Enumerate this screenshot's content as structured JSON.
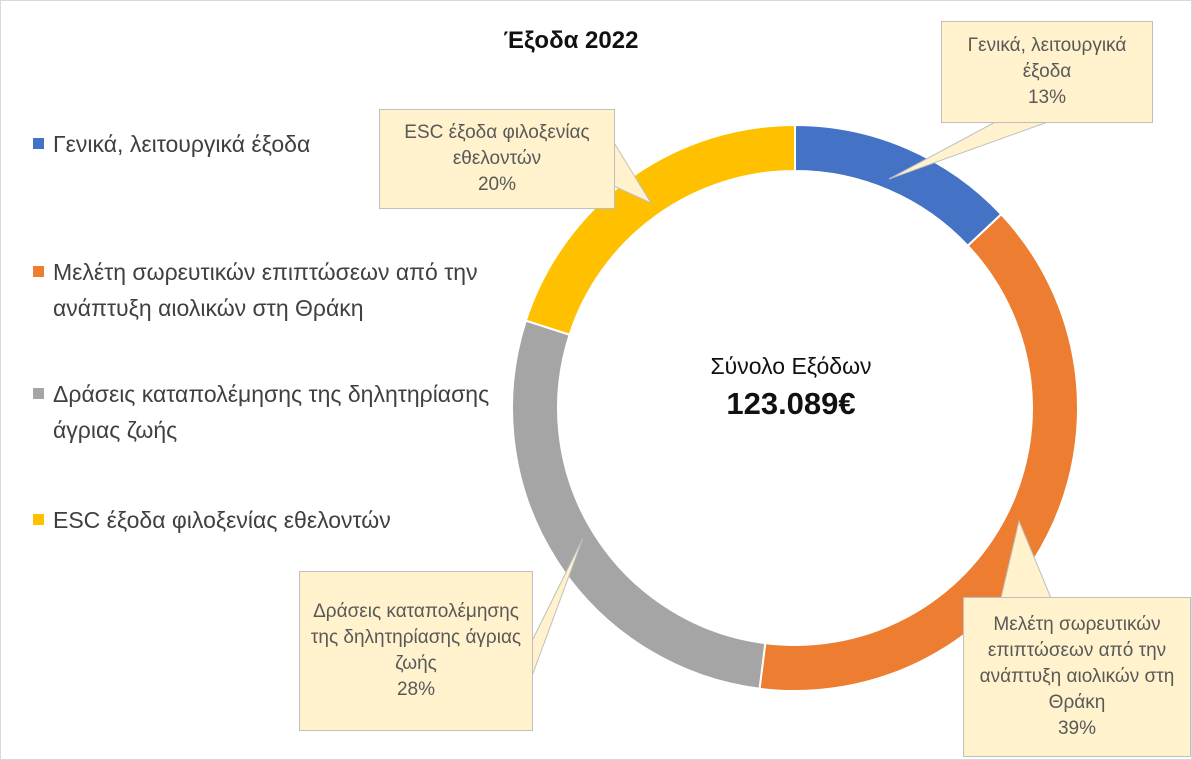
{
  "chart_data": {
    "type": "pie",
    "title": "Έξοδα 2022",
    "categories": [
      "Γενικά, λειτουργικά έξοδα",
      "Μελέτη σωρευτικών επιπτώσεων από την ανάπτυξη αιολικών στη Θράκη",
      "Δράσεις καταπολέμησης της δηλητηρίασης άγριας ζωής",
      "ESC έξοδα φιλοξενίας εθελοντών"
    ],
    "values": [
      13,
      39,
      28,
      20
    ],
    "value_labels": [
      "13%",
      "39%",
      "28%",
      "20%"
    ],
    "colors": [
      "#4472c4",
      "#ed7d31",
      "#a5a5a5",
      "#ffc000"
    ],
    "center_label": "Σύνολο Εξόδων",
    "center_value": "123.089€",
    "legend_position": "left",
    "donut": true
  }
}
